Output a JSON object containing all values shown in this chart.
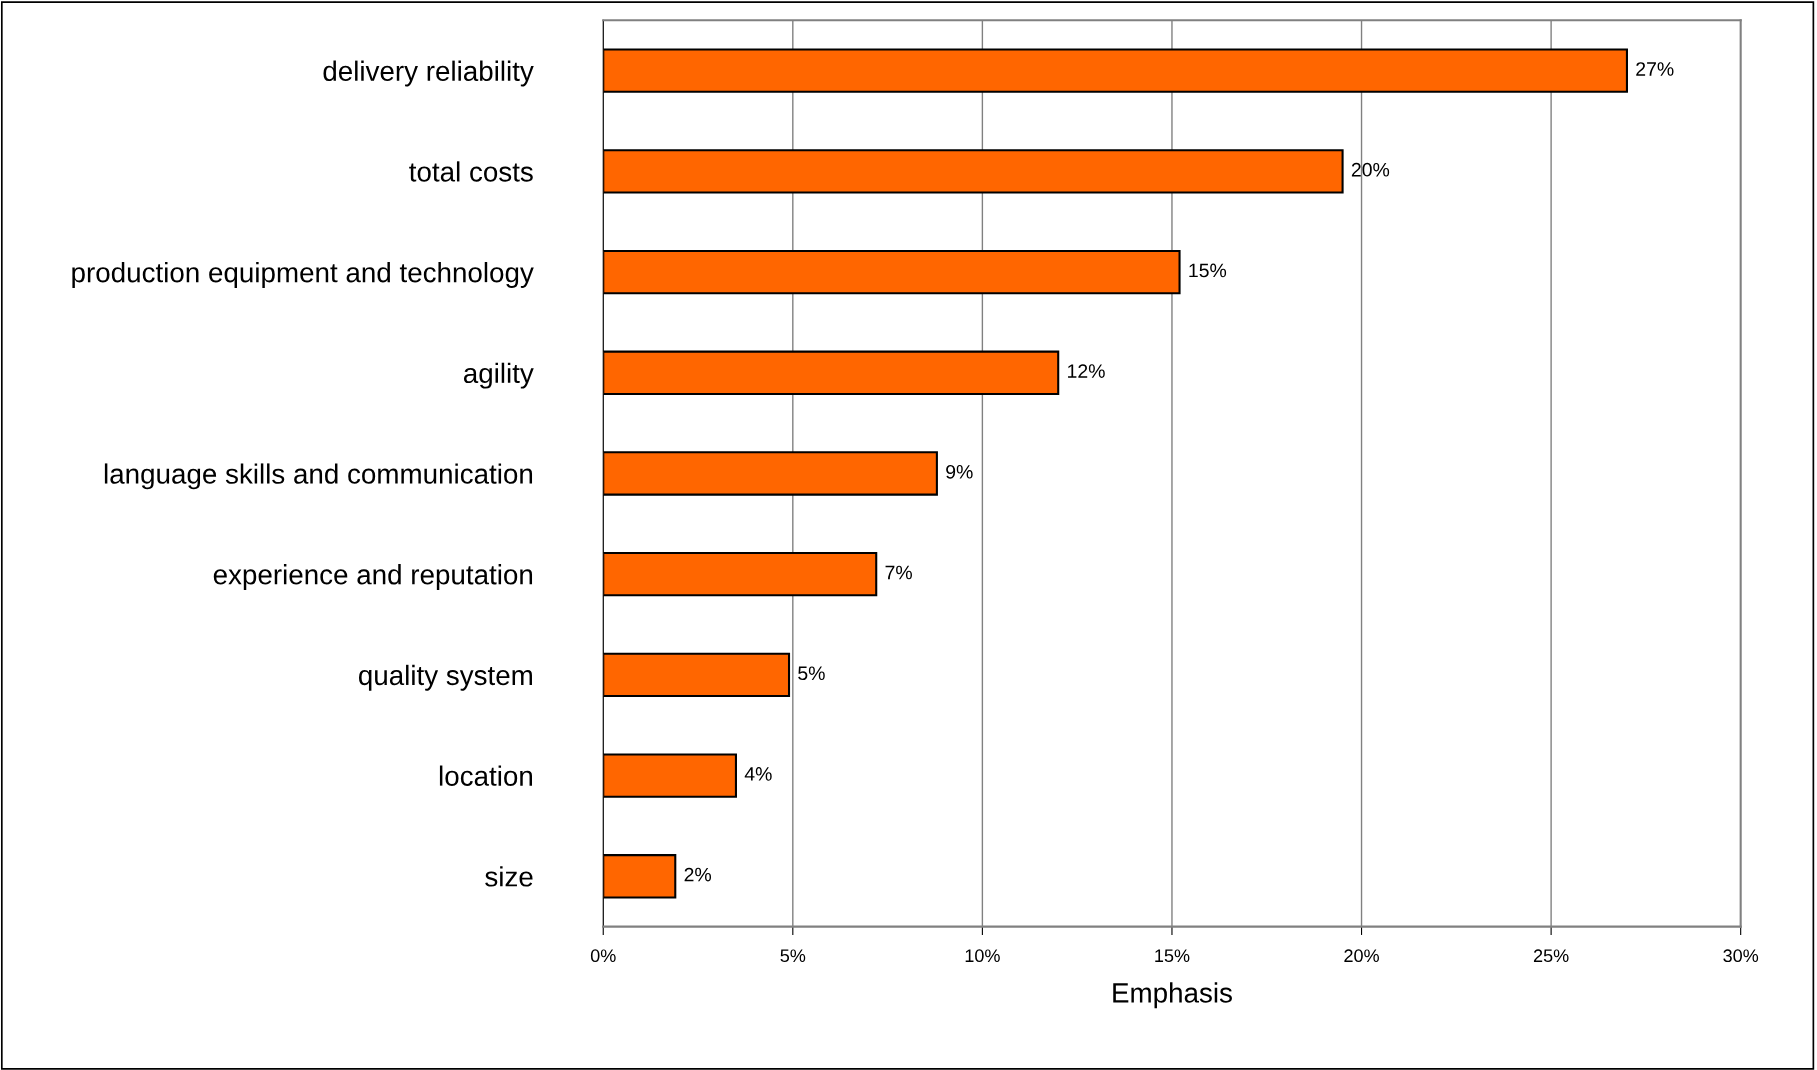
{
  "chart_data": {
    "type": "bar",
    "orientation": "horizontal",
    "xlabel": "Emphasis",
    "categories": [
      "delivery reliability",
      "total costs",
      "production equipment and technology",
      "agility",
      "language skills and communication",
      "experience and reputation",
      "quality system",
      "location",
      "size"
    ],
    "values": [
      27.0,
      19.5,
      15.2,
      12.0,
      8.8,
      7.2,
      4.9,
      3.5,
      1.9
    ],
    "value_labels": [
      "27%",
      "20%",
      "15%",
      "12%",
      "9%",
      "7%",
      "5%",
      "4%",
      "2%"
    ],
    "color": "#ff6600",
    "xlim": [
      0,
      30
    ],
    "xticks": [
      {
        "value": 0,
        "label": "0%"
      },
      {
        "value": 5,
        "label": "5%"
      },
      {
        "value": 10,
        "label": "10%"
      },
      {
        "value": 15,
        "label": "15%"
      },
      {
        "value": 20,
        "label": "20%"
      },
      {
        "value": 25,
        "label": "25%"
      },
      {
        "value": 30,
        "label": "30%"
      }
    ],
    "grid": "x",
    "legend": false
  }
}
